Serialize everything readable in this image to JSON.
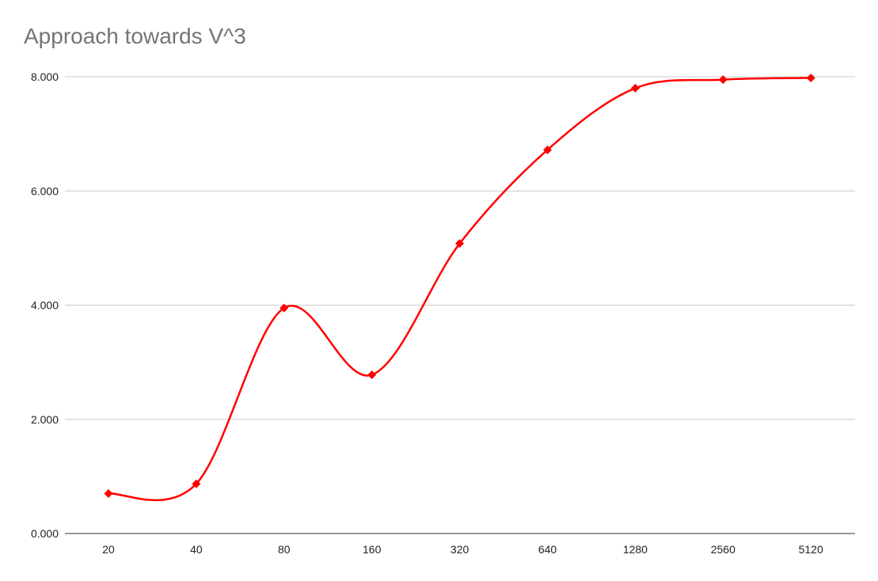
{
  "chart_data": {
    "type": "line",
    "title": "Approach towards V^3",
    "xlabel": "",
    "ylabel": "",
    "categories": [
      "20",
      "40",
      "80",
      "160",
      "320",
      "640",
      "1280",
      "2560",
      "5120"
    ],
    "series": [
      {
        "values": [
          0.7,
          0.87,
          3.95,
          2.78,
          5.08,
          6.72,
          7.8,
          7.95,
          7.98
        ]
      }
    ],
    "ylim": [
      0,
      8
    ],
    "yticks": [
      "0.000",
      "2.000",
      "4.000",
      "6.000",
      "8.000"
    ],
    "grid": true,
    "smooth": true,
    "marker": "diamond",
    "line_color": "#ff0000",
    "grid_color": "#cccccc",
    "axis_color": "#333333"
  }
}
